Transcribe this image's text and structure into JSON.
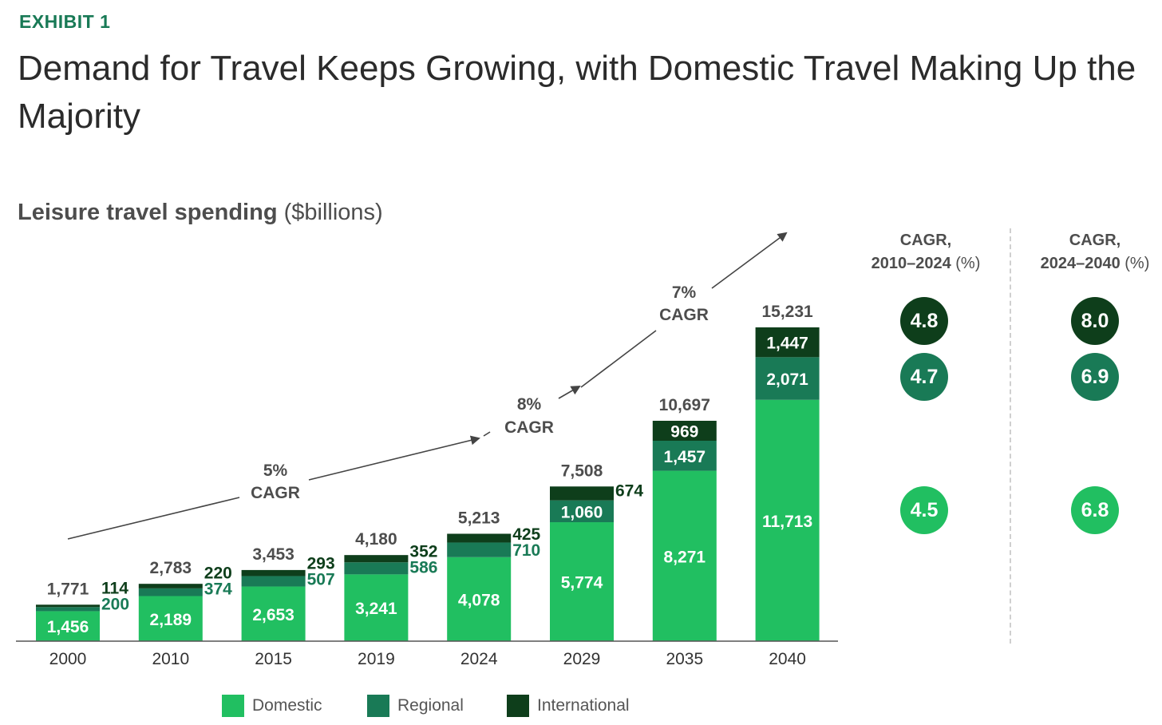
{
  "header": {
    "exhibit": "EXHIBIT 1",
    "title": "Demand for Travel Keeps Growing, with Domestic Travel Making Up the Majority",
    "subtitle_bold": "Leisure travel spending",
    "subtitle_rest": " ($billions)"
  },
  "colors": {
    "domestic": "#21bf61",
    "regional": "#197a56",
    "international": "#0e3e1b",
    "exhibit": "#197a56"
  },
  "chart_data": {
    "type": "bar",
    "stacked": true,
    "title": "Leisure travel spending ($billions)",
    "categories": [
      "2000",
      "2010",
      "2015",
      "2019",
      "2024",
      "2029",
      "2035",
      "2040"
    ],
    "series": [
      {
        "name": "Domestic",
        "values": [
          1456,
          2189,
          2653,
          3241,
          4078,
          5774,
          8271,
          11713
        ],
        "labels": [
          "1,456",
          "2,189",
          "2,653",
          "3,241",
          "4,078",
          "5,774",
          "8,271",
          "11,713"
        ]
      },
      {
        "name": "Regional",
        "values": [
          200,
          374,
          507,
          586,
          710,
          1060,
          1457,
          2071
        ],
        "labels": [
          "200",
          "374",
          "507",
          "586",
          "710",
          "1,060",
          "1,457",
          "2,071"
        ]
      },
      {
        "name": "International",
        "values": [
          114,
          220,
          293,
          352,
          425,
          674,
          969,
          1447
        ],
        "labels": [
          "114",
          "220",
          "293",
          "352",
          "425",
          "674",
          "969",
          "1,447"
        ]
      }
    ],
    "totals": [
      1771,
      2783,
      3453,
      4180,
      5213,
      7508,
      10697,
      15231
    ],
    "total_labels": [
      "1,771",
      "2,783",
      "3,453",
      "4,180",
      "5,213",
      "7,508",
      "10,697",
      "15,231"
    ],
    "ylim": [
      0,
      15231
    ],
    "growth_annotations": [
      {
        "line1": "5%",
        "line2": "CAGR",
        "from": "2000",
        "to": "2024"
      },
      {
        "line1": "8%",
        "line2": "CAGR",
        "from": "2024",
        "to": "2029"
      },
      {
        "line1": "7%",
        "line2": "CAGR",
        "from": "2029",
        "to": "2040"
      }
    ],
    "legend": [
      "Domestic",
      "Regional",
      "International"
    ]
  },
  "cagr": {
    "col1": {
      "line1": "CAGR,",
      "line2": "2010–2024",
      "unit": " (%)",
      "values": [
        "4.8",
        "4.7",
        "4.5"
      ]
    },
    "col2": {
      "line1": "CAGR,",
      "line2": "2024–2040",
      "unit": " (%)",
      "values": [
        "8.0",
        "6.9",
        "6.8"
      ]
    }
  }
}
